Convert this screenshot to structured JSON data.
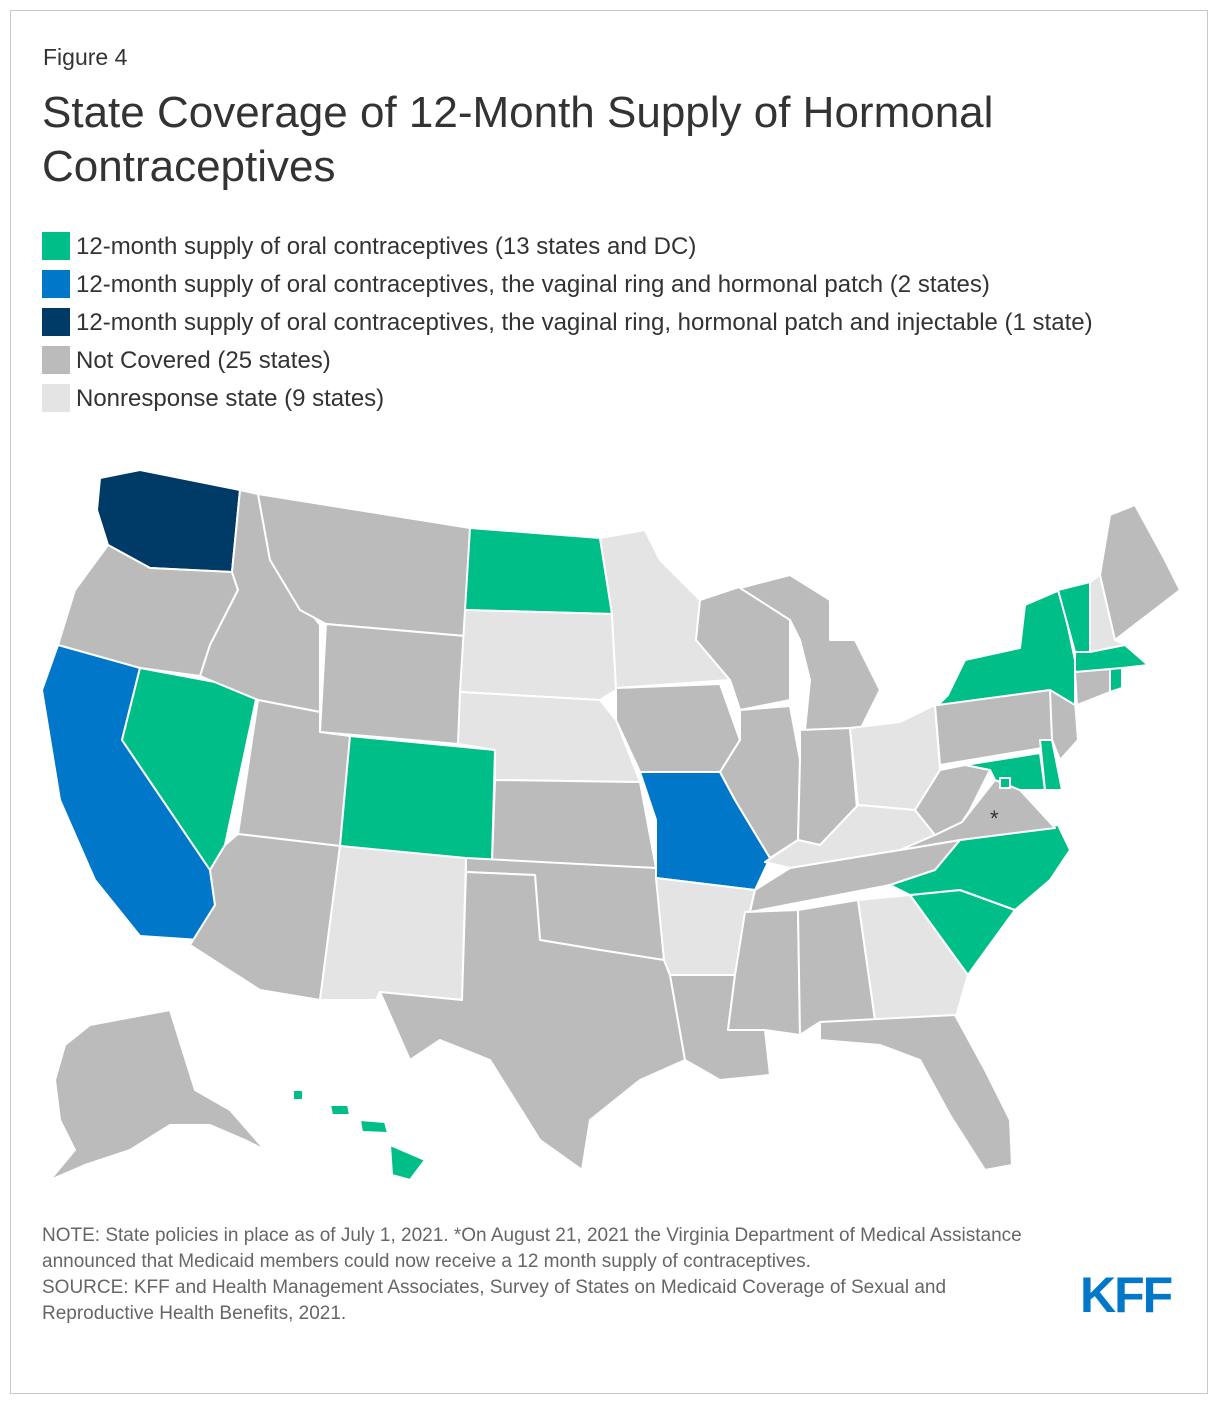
{
  "figure_label": "Figure 4",
  "title": "State Coverage of 12-Month Supply of Hormonal Contraceptives",
  "colors": {
    "green": "#00BE87",
    "blue": "#0077C8",
    "navy": "#003A66",
    "gray": "#BBBBBB",
    "lightgray": "#E4E4E4"
  },
  "legend": [
    {
      "color": "#00BE87",
      "label": "12-month supply of oral contraceptives (13 states and DC)"
    },
    {
      "color": "#0077C8",
      "label": "12-month supply of oral contraceptives, the vaginal ring and hormonal patch (2 states)"
    },
    {
      "color": "#003A66",
      "label": "12-month supply of oral contraceptives, the vaginal ring, hormonal patch and injectable (1 state)"
    },
    {
      "color": "#BBBBBB",
      "label": "Not Covered (25 states)"
    },
    {
      "color": "#E4E4E4",
      "label": "Nonresponse state (9 states)"
    }
  ],
  "map": {
    "asterisk_state": "Virginia",
    "asterisk": "*",
    "states": [
      {
        "name": "Washington",
        "category": "navy"
      },
      {
        "name": "California",
        "category": "blue"
      },
      {
        "name": "Missouri",
        "category": "blue"
      },
      {
        "name": "North Dakota",
        "category": "green"
      },
      {
        "name": "Colorado",
        "category": "green"
      },
      {
        "name": "Nevada",
        "category": "green"
      },
      {
        "name": "Hawaii",
        "category": "green"
      },
      {
        "name": "New York",
        "category": "green"
      },
      {
        "name": "Vermont",
        "category": "green"
      },
      {
        "name": "Massachusetts",
        "category": "green"
      },
      {
        "name": "Rhode Island",
        "category": "green"
      },
      {
        "name": "Maryland",
        "category": "green"
      },
      {
        "name": "Delaware",
        "category": "green"
      },
      {
        "name": "North Carolina",
        "category": "green"
      },
      {
        "name": "South Carolina",
        "category": "green"
      },
      {
        "name": "District of Columbia",
        "category": "green"
      },
      {
        "name": "Minnesota",
        "category": "lightgray"
      },
      {
        "name": "South Dakota",
        "category": "lightgray"
      },
      {
        "name": "Nebraska",
        "category": "lightgray"
      },
      {
        "name": "New Mexico",
        "category": "lightgray"
      },
      {
        "name": "Arkansas",
        "category": "lightgray"
      },
      {
        "name": "Ohio",
        "category": "lightgray"
      },
      {
        "name": "Kentucky",
        "category": "lightgray"
      },
      {
        "name": "Georgia",
        "category": "lightgray"
      },
      {
        "name": "New Hampshire",
        "category": "lightgray"
      },
      {
        "name": "Oregon",
        "category": "gray"
      },
      {
        "name": "Idaho",
        "category": "gray"
      },
      {
        "name": "Montana",
        "category": "gray"
      },
      {
        "name": "Wyoming",
        "category": "gray"
      },
      {
        "name": "Utah",
        "category": "gray"
      },
      {
        "name": "Arizona",
        "category": "gray"
      },
      {
        "name": "Kansas",
        "category": "gray"
      },
      {
        "name": "Oklahoma",
        "category": "gray"
      },
      {
        "name": "Texas",
        "category": "gray"
      },
      {
        "name": "Iowa",
        "category": "gray"
      },
      {
        "name": "Wisconsin",
        "category": "gray"
      },
      {
        "name": "Illinois",
        "category": "gray"
      },
      {
        "name": "Michigan",
        "category": "gray"
      },
      {
        "name": "Indiana",
        "category": "gray"
      },
      {
        "name": "Louisiana",
        "category": "gray"
      },
      {
        "name": "Mississippi",
        "category": "gray"
      },
      {
        "name": "Alabama",
        "category": "gray"
      },
      {
        "name": "Tennessee",
        "category": "gray"
      },
      {
        "name": "Florida",
        "category": "gray"
      },
      {
        "name": "West Virginia",
        "category": "gray"
      },
      {
        "name": "Virginia",
        "category": "gray"
      },
      {
        "name": "Pennsylvania",
        "category": "gray"
      },
      {
        "name": "New Jersey",
        "category": "gray"
      },
      {
        "name": "Connecticut",
        "category": "gray"
      },
      {
        "name": "Maine",
        "category": "gray"
      },
      {
        "name": "Alaska",
        "category": "gray"
      }
    ]
  },
  "note": "NOTE: State policies in place as of July 1, 2021. *On August 21, 2021 the Virginia Department of Medical Assistance announced that Medicaid members could now receive a 12 month supply of contraceptives.",
  "source": "SOURCE: KFF and Health Management Associates, Survey of States on Medicaid Coverage of Sexual and Reproductive Health Benefits, 2021.",
  "logo": "KFF"
}
